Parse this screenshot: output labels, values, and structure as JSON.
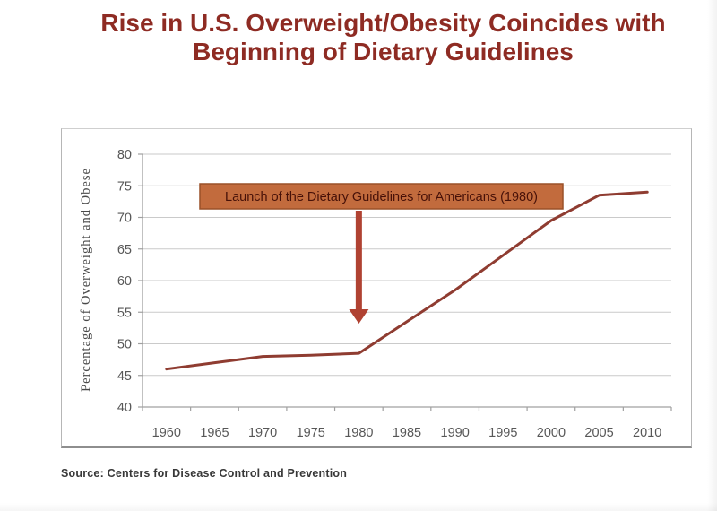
{
  "page": {
    "title_line1": "Rise in U.S. Overweight/Obesity Coincides with",
    "title_line2": "Beginning of Dietary Guidelines",
    "source": "Source: Centers for Disease Control and Prevention"
  },
  "colors": {
    "title_text": "#8E2B23",
    "series_line": "#8F3C31",
    "grid_line": "#CACACA",
    "axis_line": "#A0A0A0",
    "tick_text": "#575757",
    "yaxis_title_text": "#4A4A4A",
    "annotation_fill": "#C26B3D",
    "annotation_border": "#9A5128",
    "annotation_text": "#471108",
    "arrow": "#B04232",
    "source_text": "#383838"
  },
  "chart_data": {
    "type": "line",
    "title": "Rise in U.S. Overweight/Obesity Coincides with Beginning of Dietary Guidelines",
    "categories": [
      "1960",
      "1965",
      "1970",
      "1975",
      "1980",
      "1985",
      "1990",
      "1995",
      "2000",
      "2005",
      "2010"
    ],
    "values": [
      46,
      47,
      48,
      48.2,
      48.5,
      53.5,
      58.5,
      64,
      69.5,
      73.5,
      74
    ],
    "series_name": "Percentage of Overweight and Obese",
    "xlabel": "",
    "ylabel": "Percentage of Overweight and Obese",
    "ylim": [
      40,
      80
    ],
    "ytick_step": 5,
    "yticks": [
      40,
      45,
      50,
      55,
      60,
      65,
      70,
      75,
      80
    ],
    "grid": "horizontal",
    "legend": "none",
    "annotation": {
      "text": "Launch of the Dietary Guidelines for Americans (1980)",
      "arrow_target_category": "1980"
    }
  }
}
